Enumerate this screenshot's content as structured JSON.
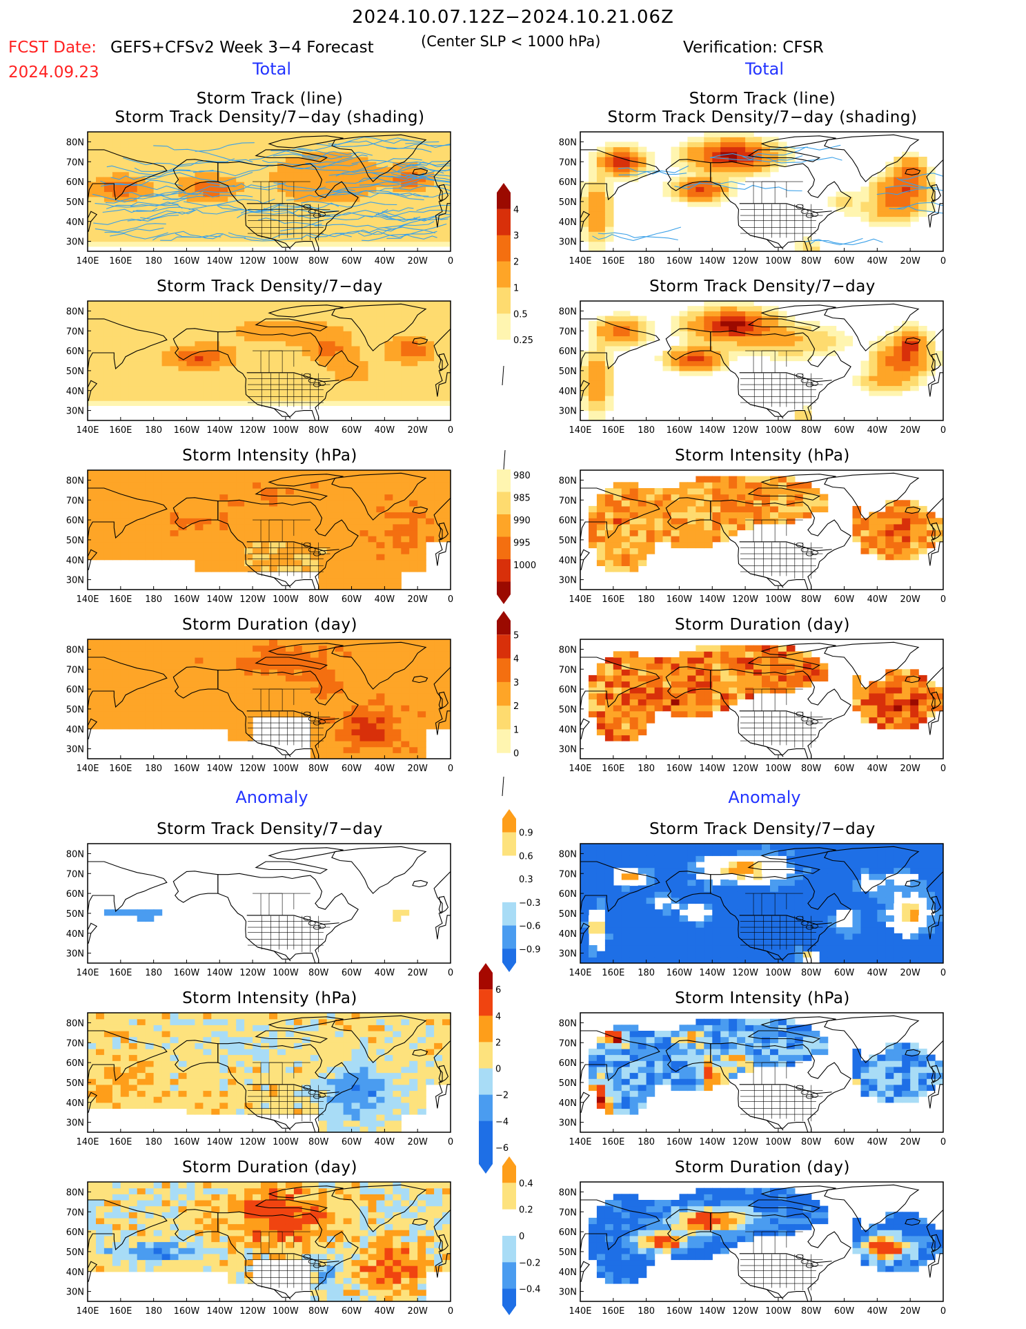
{
  "header": {
    "title": "2024.10.07.12Z−2024.10.21.06Z",
    "fcst_date_label": "FCST Date:",
    "fcst_date": "2024.09.23",
    "forecast_label": "GEFS+CFSv2 Week 3−4 Forecast",
    "criterion": "(Center SLP < 1000 hPa)",
    "verification": "Verification: CFSR"
  },
  "sections": {
    "total": "Total",
    "anomaly": "Anomaly"
  },
  "panels": {
    "track_title_1": "Storm Track (line)",
    "track_title_2": "Storm Track Density/7−day (shading)",
    "density": "Storm Track Density/7−day",
    "intensity": "Storm Intensity (hPa)",
    "duration": "Storm Duration (day)"
  },
  "axes": {
    "x_ticks": [
      "140E",
      "160E",
      "180",
      "160W",
      "140W",
      "120W",
      "100W",
      "80W",
      "60W",
      "40W",
      "20W",
      "0"
    ],
    "y_ticks": [
      "80N",
      "70N",
      "60N",
      "50N",
      "40N",
      "30N"
    ]
  },
  "colorbars": {
    "density_total": [
      "0.25",
      "0.5",
      "1",
      "2",
      "3",
      "4"
    ],
    "intensity_total": [
      "980",
      "985",
      "990",
      "995",
      "1000"
    ],
    "duration_total": [
      "0",
      "1",
      "2",
      "3",
      "4",
      "5"
    ],
    "density_anom": [
      "−0.9",
      "−0.6",
      "−0.3",
      "0.3",
      "0.6",
      "0.9"
    ],
    "intensity_anom": [
      "−6",
      "−4",
      "−2",
      "0",
      "2",
      "4",
      "6"
    ],
    "duration_anom": [
      "−0.4",
      "−0.2",
      "0",
      "0.2",
      "0.4"
    ]
  },
  "colors": {
    "total_scale": [
      "#ffffff",
      "#fff5b0",
      "#fedb6f",
      "#fea527",
      "#f46f10",
      "#d8300a",
      "#9b0a00"
    ],
    "anom_scale": [
      "#1e6fe6",
      "#4a9cf0",
      "#a8dcf6",
      "#ffffff",
      "#fde27d",
      "#fe9e1a",
      "#f04410",
      "#a60800"
    ],
    "track_line": "#3aa0e8",
    "section_label": "#2233ff",
    "date_red": "#ff2222"
  },
  "chart_data": [
    {
      "id": "fcst-track",
      "type": "heatmap",
      "title": "Storm Track (line) / Storm Track Density/7−day (shading)",
      "source": "GEFS+CFSv2 Week 3−4 Forecast",
      "xlim": [
        140,
        360
      ],
      "ylim": [
        25,
        85
      ],
      "maxima": [
        {
          "lon": 160,
          "lat": 57,
          "value": 3
        },
        {
          "lon": 215,
          "lat": 57,
          "value": 3
        },
        {
          "lon": 335,
          "lat": 62,
          "value": 3
        }
      ]
    },
    {
      "id": "cfsr-track",
      "type": "heatmap",
      "title": "Storm Track (line) / Storm Track Density/7−day (shading)",
      "source": "CFSR",
      "xlim": [
        140,
        360
      ],
      "ylim": [
        25,
        85
      ],
      "maxima": [
        {
          "lon": 165,
          "lat": 70,
          "value": 3
        },
        {
          "lon": 230,
          "lat": 72,
          "value": 4
        },
        {
          "lon": 215,
          "lat": 56,
          "value": 3
        },
        {
          "lon": 340,
          "lat": 63,
          "value": 3
        }
      ]
    },
    {
      "id": "fcst-density",
      "type": "heatmap",
      "title": "Storm Track Density/7−day",
      "source": "GEFS+CFSv2",
      "units": "storms per 7 days",
      "maxima": [
        {
          "lon": 210,
          "lat": 57,
          "value": 3
        },
        {
          "lon": 285,
          "lat": 60,
          "value": 3
        },
        {
          "lon": 335,
          "lat": 61,
          "value": 3
        }
      ]
    },
    {
      "id": "cfsr-density",
      "type": "heatmap",
      "title": "Storm Track Density/7−day",
      "source": "CFSR",
      "maxima": [
        {
          "lon": 235,
          "lat": 73,
          "value": 4
        },
        {
          "lon": 210,
          "lat": 56,
          "value": 3
        },
        {
          "lon": 340,
          "lat": 63,
          "value": 3
        }
      ]
    },
    {
      "id": "fcst-intensity",
      "type": "heatmap",
      "title": "Storm Intensity (hPa)",
      "source": "GEFS+CFSv2",
      "range": [
        980,
        1000
      ]
    },
    {
      "id": "cfsr-intensity",
      "type": "heatmap",
      "title": "Storm Intensity (hPa)",
      "source": "CFSR",
      "range": [
        980,
        1000
      ]
    },
    {
      "id": "fcst-duration",
      "type": "heatmap",
      "title": "Storm Duration (day)",
      "source": "GEFS+CFSv2",
      "range": [
        0,
        5
      ]
    },
    {
      "id": "cfsr-duration",
      "type": "heatmap",
      "title": "Storm Duration (day)",
      "source": "CFSR",
      "range": [
        0,
        5
      ]
    },
    {
      "id": "fcst-density-anom",
      "type": "heatmap",
      "title": "Storm Track Density/7−day",
      "range": [
        -0.9,
        0.9
      ]
    },
    {
      "id": "cfsr-density-anom",
      "type": "heatmap",
      "title": "Storm Track Density/7−day",
      "range": [
        -0.9,
        0.9
      ]
    },
    {
      "id": "fcst-intensity-anom",
      "type": "heatmap",
      "title": "Storm Intensity (hPa)",
      "range": [
        -6,
        6
      ]
    },
    {
      "id": "cfsr-intensity-anom",
      "type": "heatmap",
      "title": "Storm Intensity (hPa)",
      "range": [
        -6,
        6
      ]
    },
    {
      "id": "fcst-duration-anom",
      "type": "heatmap",
      "title": "Storm Duration (day)",
      "range": [
        -0.4,
        0.4
      ]
    },
    {
      "id": "cfsr-duration-anom",
      "type": "heatmap",
      "title": "Storm Duration (day)",
      "range": [
        -0.4,
        0.4
      ]
    }
  ]
}
